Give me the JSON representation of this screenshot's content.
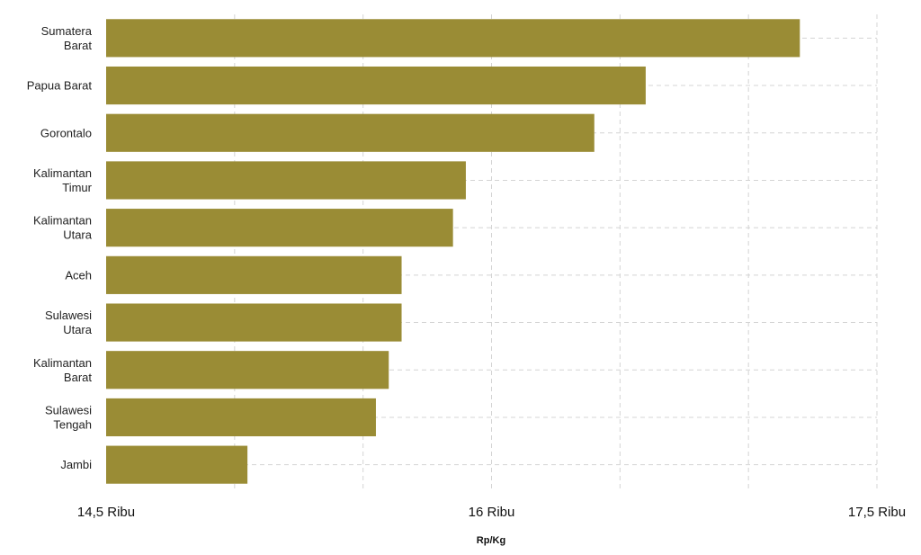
{
  "chart_data": {
    "type": "bar",
    "orientation": "horizontal",
    "categories": [
      [
        "Sumatera",
        "Barat"
      ],
      [
        "Papua Barat"
      ],
      [
        "Gorontalo"
      ],
      [
        "Kalimantan",
        "Timur"
      ],
      [
        "Kalimantan",
        "Utara"
      ],
      [
        "Aceh"
      ],
      [
        "Sulawesi",
        "Utara"
      ],
      [
        "Kalimantan",
        "Barat"
      ],
      [
        "Sulawesi",
        "Tengah"
      ],
      [
        "Jambi"
      ]
    ],
    "values": [
      17200,
      16600,
      16400,
      15900,
      15850,
      15650,
      15650,
      15600,
      15550,
      15050
    ],
    "xlim": [
      14500,
      17500
    ],
    "xticks": [
      14500,
      16000,
      17500
    ],
    "xtick_labels": [
      "14,5 Ribu",
      "16 Ribu",
      "17,5 Ribu"
    ],
    "xlabel": "Rp/Kg",
    "ylabel": "",
    "title": "",
    "grid": true,
    "bar_color": "#9a8c35"
  }
}
